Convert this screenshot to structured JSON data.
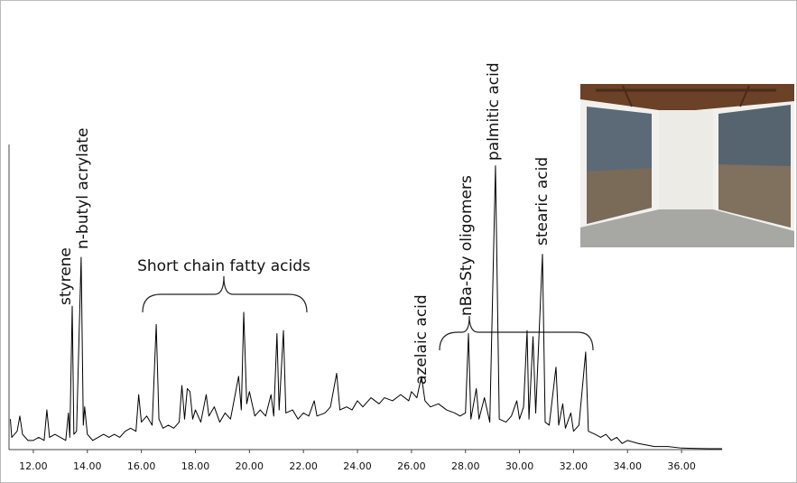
{
  "chart_data": {
    "type": "line",
    "annotations": [
      "styrene",
      "n-butyl acrylate",
      "Short chain fatty acids",
      "azelaic acid",
      "nBa-Sty oligomers",
      "palmitic acid",
      "stearic acid"
    ],
    "x": [
      11.15,
      11.2,
      11.4,
      11.5,
      11.6,
      11.8,
      12.0,
      12.2,
      12.4,
      12.5,
      12.6,
      12.8,
      13.0,
      13.2,
      13.3,
      13.35,
      13.44,
      13.5,
      13.6,
      13.77,
      13.85,
      13.9,
      14.0,
      14.2,
      14.4,
      14.6,
      14.8,
      15.0,
      15.2,
      15.4,
      15.6,
      15.8,
      15.9,
      16.0,
      16.2,
      16.4,
      16.55,
      16.65,
      16.8,
      17.0,
      17.2,
      17.4,
      17.5,
      17.6,
      17.7,
      17.8,
      17.9,
      18.0,
      18.2,
      18.4,
      18.5,
      18.7,
      18.9,
      19.1,
      19.3,
      19.6,
      19.7,
      19.79,
      19.9,
      20.0,
      20.2,
      20.4,
      20.6,
      20.8,
      20.9,
      21.02,
      21.1,
      21.26,
      21.35,
      21.6,
      21.8,
      22.0,
      22.2,
      22.4,
      22.5,
      22.8,
      23.0,
      23.23,
      23.35,
      23.6,
      23.8,
      24.0,
      24.2,
      24.5,
      24.8,
      25.0,
      25.3,
      25.6,
      25.9,
      26.0,
      26.2,
      26.37,
      26.5,
      26.7,
      27.0,
      27.3,
      27.6,
      27.8,
      28.0,
      28.11,
      28.2,
      28.4,
      28.5,
      28.7,
      28.9,
      29.11,
      29.25,
      29.5,
      29.7,
      29.9,
      30.0,
      30.15,
      30.28,
      30.35,
      30.5,
      30.6,
      30.85,
      30.95,
      31.1,
      31.35,
      31.45,
      31.6,
      31.7,
      31.9,
      32.0,
      32.2,
      32.45,
      32.55,
      32.8,
      33.0,
      33.2,
      33.4,
      33.6,
      33.8,
      34.0,
      34.4,
      35.0,
      35.5,
      36.0,
      37.0,
      37.5
    ],
    "values": [
      10,
      4,
      6,
      11,
      5,
      3,
      3,
      4,
      3,
      13,
      4,
      5,
      4,
      3,
      12,
      4,
      47,
      5,
      6,
      63,
      8,
      14,
      5,
      3,
      4,
      5,
      4,
      5,
      4,
      6,
      7,
      6,
      18,
      9,
      11,
      8,
      41,
      10,
      7,
      8,
      7,
      9,
      21,
      10,
      20,
      19,
      10,
      13,
      9,
      18,
      11,
      14,
      9,
      12,
      10,
      24,
      13,
      45,
      15,
      19,
      11,
      13,
      11,
      18,
      11,
      38,
      13,
      39,
      12,
      13,
      10,
      12,
      11,
      16,
      11,
      12,
      14,
      25,
      13,
      14,
      13,
      16,
      14,
      17,
      15,
      17,
      16,
      18,
      16,
      19,
      17,
      24,
      16,
      14,
      15,
      13,
      12,
      11,
      12,
      38,
      10,
      20,
      10,
      17,
      9,
      93,
      10,
      9,
      11,
      16,
      10,
      14,
      39,
      10,
      37,
      12,
      64,
      9,
      8,
      27,
      8,
      15,
      7,
      12,
      6,
      8,
      32,
      6,
      5,
      4,
      5,
      3,
      4,
      2,
      3,
      2,
      1,
      1,
      0.5,
      0.3,
      0.3
    ],
    "color": "#000000",
    "xlim": [
      11.1,
      37.5
    ],
    "ylim": [
      0,
      100
    ],
    "xticks": [
      {
        "value": 12,
        "label": "12.00"
      },
      {
        "value": 14,
        "label": "14.00"
      },
      {
        "value": 16,
        "label": "16.00"
      },
      {
        "value": 18,
        "label": "18.00"
      },
      {
        "value": 20,
        "label": "20.00"
      },
      {
        "value": 22,
        "label": "22.00"
      },
      {
        "value": 24,
        "label": "24.00"
      },
      {
        "value": 26,
        "label": "26.00"
      },
      {
        "value": 28,
        "label": "28.00"
      },
      {
        "value": 30,
        "label": "30.00"
      },
      {
        "value": 32,
        "label": "32.00"
      },
      {
        "value": 34,
        "label": "34.00"
      },
      {
        "value": 36,
        "label": "36.00"
      }
    ]
  }
}
